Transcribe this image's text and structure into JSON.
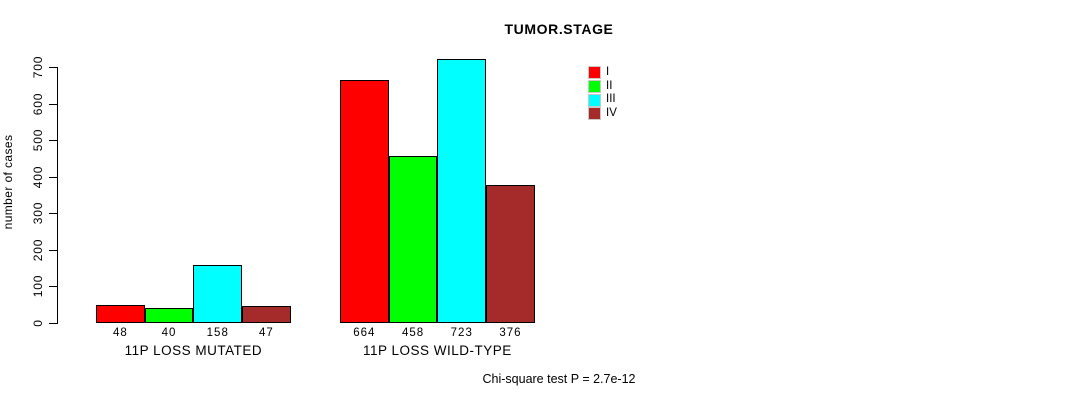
{
  "chart_data": {
    "type": "bar",
    "grouped": true,
    "title": "TUMOR.STAGE",
    "xlabel": "",
    "ylabel": "number of cases",
    "ylim": [
      0,
      700
    ],
    "yticks": [
      0,
      100,
      200,
      300,
      400,
      500,
      600,
      700
    ],
    "grid": false,
    "legend_position": "top-right",
    "categories": [
      "11P LOSS MUTATED",
      "11P LOSS WILD-TYPE"
    ],
    "series": [
      {
        "name": "I",
        "color": "#ff0000",
        "values": [
          48,
          664
        ]
      },
      {
        "name": "II",
        "color": "#00ff00",
        "values": [
          40,
          458
        ]
      },
      {
        "name": "III",
        "color": "#00ffff",
        "values": [
          158,
          723
        ]
      },
      {
        "name": "IV",
        "color": "#a52a2a",
        "values": [
          47,
          376
        ]
      }
    ],
    "bar_value_labels": {
      "11P LOSS MUTATED": [
        48,
        40,
        158,
        47
      ],
      "11P LOSS WILD-TYPE": [
        664,
        458,
        723,
        376
      ]
    },
    "annotation": "Chi-square test P = 2.7e-12"
  },
  "colors": {
    "stage_I": "#ff0000",
    "stage_II": "#00ff00",
    "stage_III": "#00ffff",
    "stage_IV": "#a52a2a",
    "axis": "#000000",
    "background": "#ffffff"
  }
}
